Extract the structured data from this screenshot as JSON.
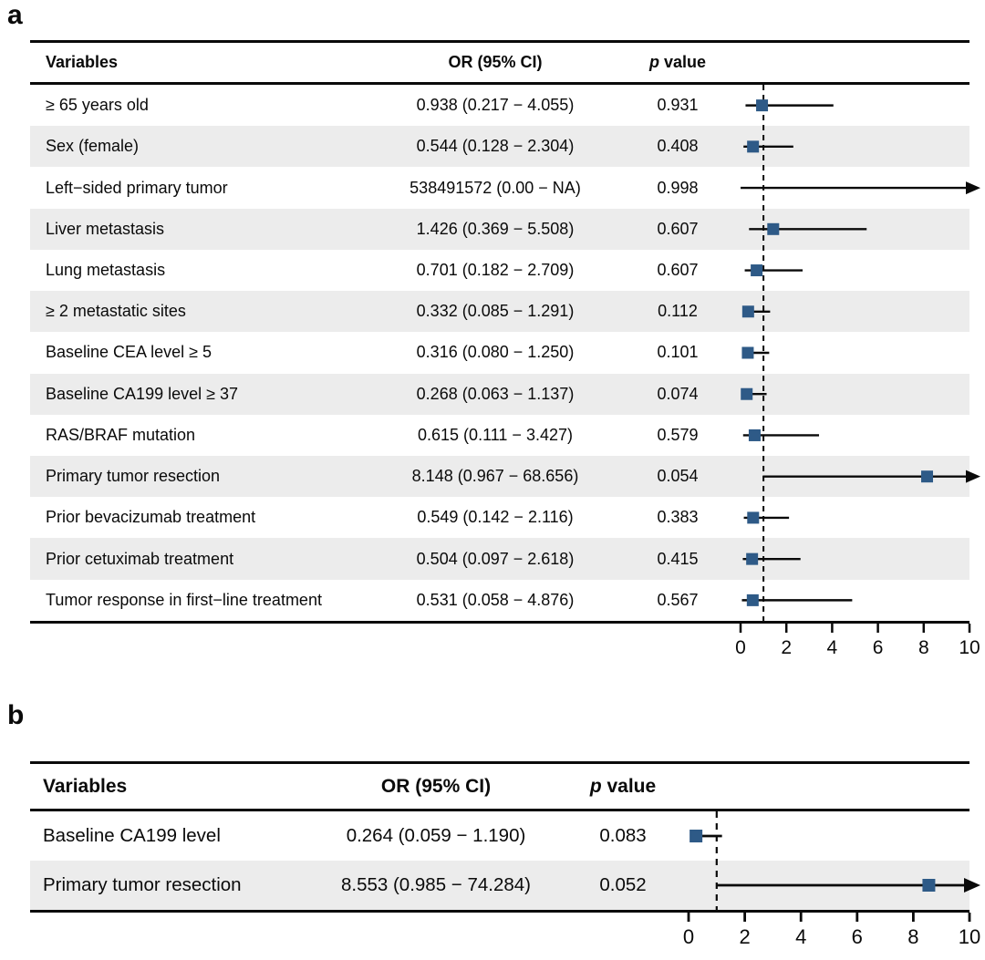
{
  "colors": {
    "marker_fill": "#2e5a87",
    "row_stripe": "#ececec",
    "line": "#0a0a0a",
    "text": "#0a0a0a"
  },
  "chart_data": [
    {
      "type": "scatter",
      "subtype": "forest-plot",
      "panel_label": "a",
      "columns": {
        "variables": "Variables",
        "or_ci": "OR (95% CI)",
        "p_italic": "p",
        "p_rest": " value"
      },
      "axis": {
        "min": 0,
        "max": 10,
        "ticks": [
          0,
          2,
          4,
          6,
          8,
          10
        ],
        "ref_line": 1,
        "grid": false
      },
      "rows": [
        {
          "variable": "≥ 65 years old",
          "or_ci": "0.938 (0.217 − 4.055)",
          "p": "0.931",
          "or": 0.938,
          "low": 0.217,
          "high": 4.055,
          "arrow": false
        },
        {
          "variable": "Sex (female)",
          "or_ci": "0.544 (0.128 − 2.304)",
          "p": "0.408",
          "or": 0.544,
          "low": 0.128,
          "high": 2.304,
          "arrow": false
        },
        {
          "variable": "Left−sided primary tumor",
          "or_ci": "538491572 (0.00 − NA)",
          "p": "0.998",
          "or": null,
          "low": 0.0,
          "high": null,
          "arrow": true
        },
        {
          "variable": "Liver metastasis",
          "or_ci": "1.426 (0.369 − 5.508)",
          "p": "0.607",
          "or": 1.426,
          "low": 0.369,
          "high": 5.508,
          "arrow": false
        },
        {
          "variable": "Lung metastasis",
          "or_ci": "0.701 (0.182 − 2.709)",
          "p": "0.607",
          "or": 0.701,
          "low": 0.182,
          "high": 2.709,
          "arrow": false
        },
        {
          "variable": "≥ 2 metastatic sites",
          "or_ci": "0.332 (0.085 − 1.291)",
          "p": "0.112",
          "or": 0.332,
          "low": 0.085,
          "high": 1.291,
          "arrow": false
        },
        {
          "variable": "Baseline CEA level ≥ 5",
          "or_ci": "0.316 (0.080 − 1.250)",
          "p": "0.101",
          "or": 0.316,
          "low": 0.08,
          "high": 1.25,
          "arrow": false
        },
        {
          "variable": "Baseline CA199 level ≥ 37",
          "or_ci": "0.268 (0.063 − 1.137)",
          "p": "0.074",
          "or": 0.268,
          "low": 0.063,
          "high": 1.137,
          "arrow": false
        },
        {
          "variable": "RAS/BRAF mutation",
          "or_ci": "0.615 (0.111 − 3.427)",
          "p": "0.579",
          "or": 0.615,
          "low": 0.111,
          "high": 3.427,
          "arrow": false
        },
        {
          "variable": "Primary tumor resection",
          "or_ci": "8.148 (0.967 − 68.656)",
          "p": "0.054",
          "or": 8.148,
          "low": 0.967,
          "high": 68.656,
          "arrow": true
        },
        {
          "variable": "Prior bevacizumab treatment",
          "or_ci": "0.549 (0.142 − 2.116)",
          "p": "0.383",
          "or": 0.549,
          "low": 0.142,
          "high": 2.116,
          "arrow": false
        },
        {
          "variable": "Prior cetuximab treatment",
          "or_ci": "0.504 (0.097 − 2.618)",
          "p": "0.415",
          "or": 0.504,
          "low": 0.097,
          "high": 2.618,
          "arrow": false
        },
        {
          "variable": "Tumor response in first−line treatment",
          "or_ci": "0.531 (0.058 − 4.876)",
          "p": "0.567",
          "or": 0.531,
          "low": 0.058,
          "high": 4.876,
          "arrow": false
        }
      ]
    },
    {
      "type": "scatter",
      "subtype": "forest-plot",
      "panel_label": "b",
      "columns": {
        "variables": "Variables",
        "or_ci": "OR (95% CI)",
        "p_italic": "p",
        "p_rest": " value"
      },
      "axis": {
        "min": 0,
        "max": 10,
        "ticks": [
          0,
          2,
          4,
          6,
          8,
          10
        ],
        "ref_line": 1,
        "grid": false
      },
      "rows": [
        {
          "variable": "Baseline CA199 level",
          "or_ci": "0.264 (0.059 − 1.190)",
          "p": "0.083",
          "or": 0.264,
          "low": 0.059,
          "high": 1.19,
          "arrow": false
        },
        {
          "variable": "Primary tumor resection",
          "or_ci": "8.553 (0.985 − 74.284)",
          "p": "0.052",
          "or": 8.553,
          "low": 0.985,
          "high": 74.284,
          "arrow": true
        }
      ]
    }
  ]
}
